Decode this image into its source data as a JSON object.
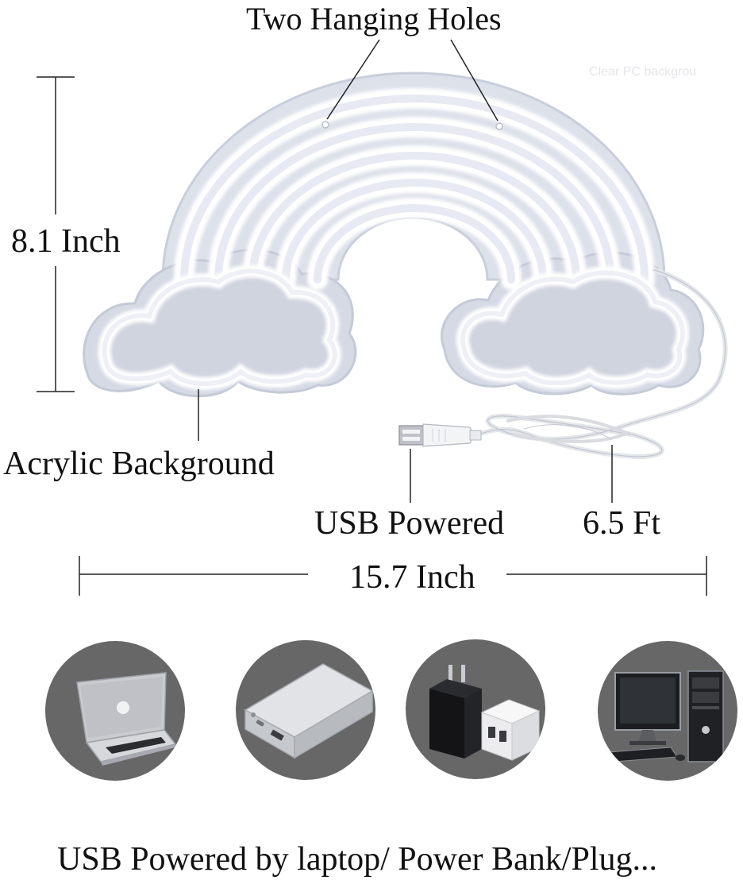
{
  "annotations": {
    "hanging_holes": "Two Hanging Holes",
    "height": "8.1 Inch",
    "background": "Acrylic Background",
    "power": "USB Powered",
    "cable_length": "6.5 Ft",
    "width": "15.7 Inch"
  },
  "watermark": "Clear PC backgrou",
  "caption": "USB Powered by laptop/ Power Bank/Plug...",
  "devices": [
    {
      "name": "laptop",
      "icon": "laptop-icon"
    },
    {
      "name": "power bank",
      "icon": "power-bank-icon"
    },
    {
      "name": "wall plug",
      "icon": "plug-adapter-icon"
    },
    {
      "name": "desktop computer",
      "icon": "desktop-computer-icon"
    }
  ],
  "colors": {
    "neon_glow": "#f4f6fb",
    "acrylic": "#d9dde8",
    "device_circle": "#676767",
    "text": "#111111"
  }
}
